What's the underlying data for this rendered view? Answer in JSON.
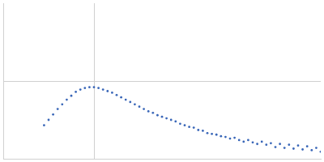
{
  "chart_data": {
    "type": "scatter",
    "color": "#3a67b8",
    "marker": "circle",
    "grid": true,
    "tick_labels": false,
    "xlim": [
      0,
      3.5
    ],
    "xticks": [
      1
    ],
    "ylim": [
      0,
      2
    ],
    "yticks": [
      1
    ],
    "x": [
      0.45,
      0.5,
      0.55,
      0.6,
      0.65,
      0.7,
      0.75,
      0.8,
      0.85,
      0.9,
      0.95,
      1.0,
      1.05,
      1.1,
      1.15,
      1.2,
      1.25,
      1.3,
      1.35,
      1.4,
      1.45,
      1.5,
      1.55,
      1.6,
      1.65,
      1.7,
      1.75,
      1.8,
      1.85,
      1.9,
      1.95,
      2.0,
      2.05,
      2.1,
      2.15,
      2.2,
      2.25,
      2.3,
      2.35,
      2.4,
      2.45,
      2.5,
      2.55,
      2.6,
      2.65,
      2.7,
      2.75,
      2.8,
      2.85,
      2.9,
      2.95,
      3.0,
      3.05,
      3.1,
      3.15,
      3.2,
      3.25,
      3.3,
      3.35,
      3.4,
      3.45,
      3.5
    ],
    "values": [
      0.43,
      0.5,
      0.57,
      0.64,
      0.7,
      0.76,
      0.81,
      0.86,
      0.89,
      0.91,
      0.92,
      0.92,
      0.91,
      0.89,
      0.87,
      0.85,
      0.82,
      0.79,
      0.76,
      0.73,
      0.7,
      0.67,
      0.64,
      0.61,
      0.59,
      0.56,
      0.54,
      0.52,
      0.5,
      0.48,
      0.45,
      0.43,
      0.41,
      0.4,
      0.37,
      0.36,
      0.33,
      0.32,
      0.31,
      0.29,
      0.28,
      0.26,
      0.27,
      0.24,
      0.22,
      0.24,
      0.21,
      0.19,
      0.22,
      0.18,
      0.2,
      0.15,
      0.19,
      0.14,
      0.18,
      0.13,
      0.17,
      0.12,
      0.16,
      0.11,
      0.14,
      0.09
    ]
  }
}
